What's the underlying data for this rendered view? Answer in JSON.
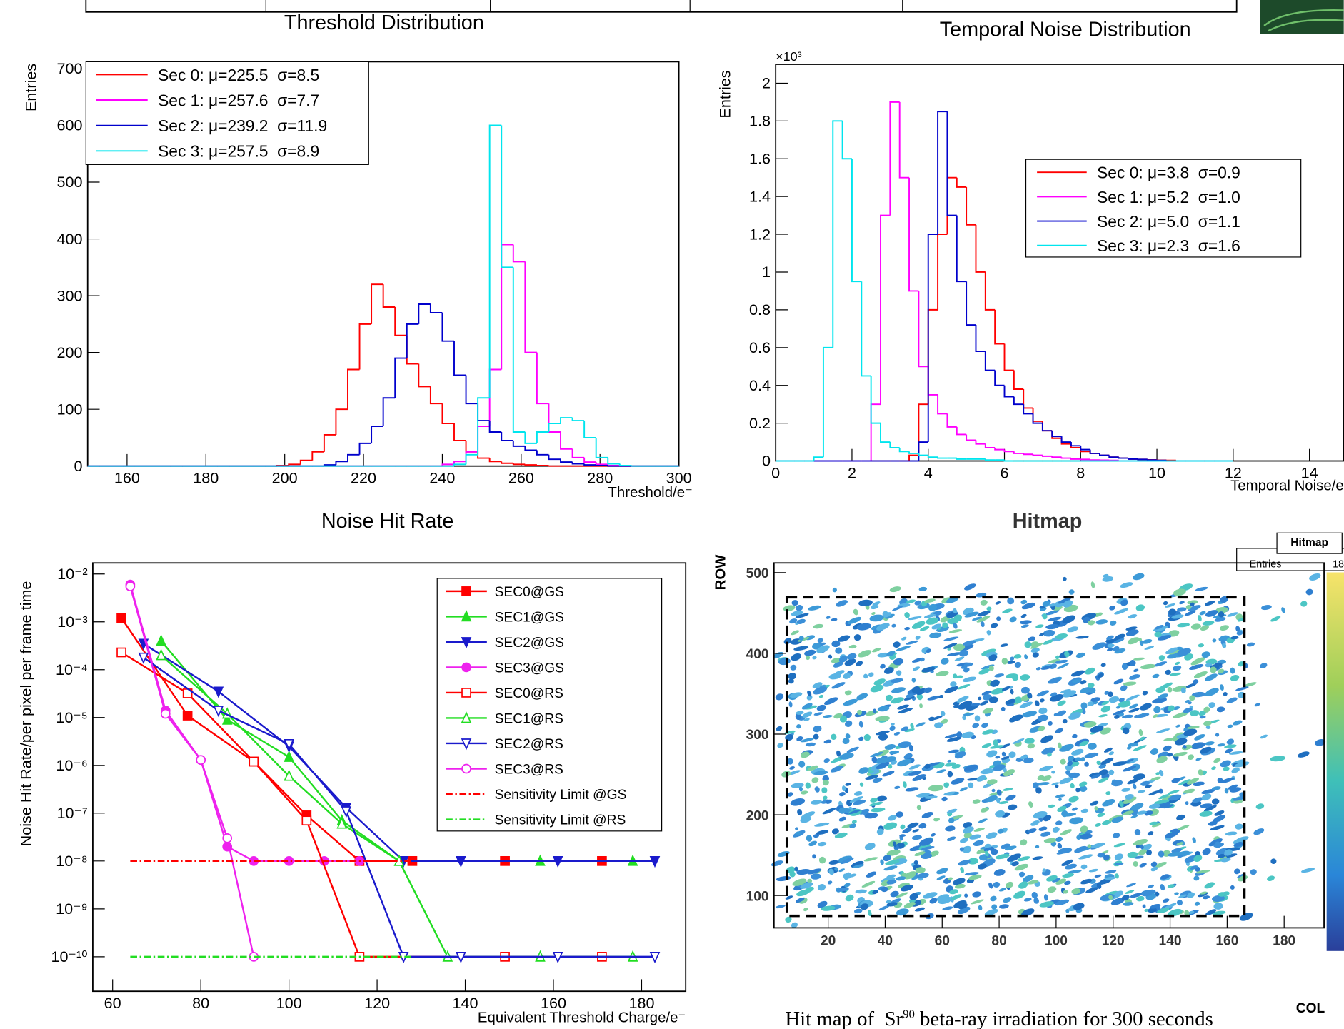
{
  "chart_data": [
    {
      "type": "histogram",
      "title": "Threshold Distribution",
      "ylabel": "Entries",
      "xlabel": "Threshold/e⁻",
      "bins": [
        150,
        153,
        156,
        159,
        162,
        165,
        168,
        171,
        174,
        177,
        180,
        183,
        186,
        189,
        192,
        195,
        198,
        201,
        204,
        207,
        210,
        213,
        216,
        219,
        222,
        225,
        228,
        231,
        234,
        237,
        240,
        243,
        246,
        249,
        252,
        255,
        258,
        261,
        264,
        267,
        270,
        273,
        276,
        279,
        282,
        285,
        288,
        291,
        294,
        297,
        300
      ],
      "xlim": [
        150,
        300
      ],
      "ylim": [
        0,
        712
      ],
      "xticks": [
        160,
        180,
        200,
        220,
        240,
        260,
        280,
        300
      ],
      "yticks": [
        0,
        100,
        200,
        300,
        400,
        500,
        600,
        700
      ],
      "legend": "top-left",
      "series": [
        {
          "name": "Sec 0: μ=225.5  σ=8.5",
          "color": "#ff0000",
          "values": [
            0,
            0,
            0,
            0,
            0,
            0,
            0,
            0,
            0,
            0,
            0,
            0,
            0,
            0,
            0,
            0,
            1,
            3,
            10,
            25,
            55,
            100,
            170,
            250,
            320,
            280,
            230,
            180,
            140,
            110,
            75,
            45,
            25,
            14,
            8,
            5,
            3,
            2,
            1,
            0,
            0,
            0,
            0,
            0,
            0,
            0,
            0,
            0,
            0,
            0
          ]
        },
        {
          "name": "Sec 1: μ=257.6  σ=7.7",
          "color": "#ff00ff",
          "values": [
            0,
            0,
            0,
            0,
            0,
            0,
            0,
            0,
            0,
            0,
            0,
            0,
            0,
            0,
            0,
            0,
            0,
            0,
            0,
            0,
            0,
            0,
            0,
            0,
            0,
            0,
            0,
            0,
            0,
            0,
            3,
            8,
            25,
            70,
            170,
            390,
            360,
            200,
            110,
            60,
            30,
            15,
            7,
            3,
            1,
            0,
            0,
            0,
            0,
            0
          ]
        },
        {
          "name": "Sec 2: μ=239.2  σ=11.9",
          "color": "#0000cc",
          "values": [
            0,
            0,
            0,
            0,
            0,
            0,
            0,
            0,
            0,
            0,
            0,
            0,
            0,
            0,
            0,
            0,
            0,
            0,
            0,
            0,
            2,
            8,
            20,
            40,
            70,
            120,
            190,
            250,
            285,
            270,
            220,
            160,
            110,
            80,
            60,
            45,
            35,
            28,
            20,
            12,
            7,
            4,
            2,
            1,
            0,
            0,
            0,
            0,
            0,
            0
          ]
        },
        {
          "name": "Sec 3: μ=257.5  σ=8.9",
          "color": "#00e5ee",
          "values": [
            0,
            0,
            0,
            0,
            0,
            0,
            0,
            0,
            0,
            0,
            0,
            0,
            0,
            0,
            0,
            0,
            0,
            0,
            0,
            0,
            0,
            0,
            0,
            0,
            0,
            0,
            0,
            0,
            0,
            0,
            0,
            3,
            20,
            120,
            600,
            350,
            60,
            40,
            60,
            75,
            85,
            80,
            50,
            15,
            4,
            1,
            0,
            0,
            0,
            0
          ]
        }
      ]
    },
    {
      "type": "histogram",
      "title": "Temporal Noise Distribution",
      "ylabel": "Entries",
      "xlabel": "Temporal Noise/e",
      "yunit": "×10³",
      "bins": [
        0,
        0.25,
        0.5,
        0.75,
        1,
        1.25,
        1.5,
        1.75,
        2,
        2.25,
        2.5,
        2.75,
        3,
        3.25,
        3.5,
        3.75,
        4,
        4.25,
        4.5,
        4.75,
        5,
        5.25,
        5.5,
        5.75,
        6,
        6.25,
        6.5,
        6.75,
        7,
        7.25,
        7.5,
        7.75,
        8,
        8.25,
        8.5,
        8.75,
        9,
        9.25,
        9.5,
        9.75,
        10,
        10.25,
        10.5,
        10.75,
        11,
        11.25,
        11.5,
        11.75,
        12
      ],
      "xlim": [
        0,
        14.9
      ],
      "ylim": [
        0,
        2.1
      ],
      "xticks": [
        0,
        2,
        4,
        6,
        8,
        10,
        12,
        14
      ],
      "yticks": [
        0,
        0.2,
        0.4,
        0.6,
        0.8,
        1,
        1.2,
        1.4,
        1.6,
        1.8,
        2
      ],
      "legend": "top-right",
      "series": [
        {
          "name": "Sec 0: μ=3.8  σ=0.9",
          "color": "#ff0000",
          "values": [
            0,
            0,
            0,
            0,
            0,
            0,
            0,
            0,
            0,
            0,
            0,
            0,
            0,
            0,
            0.03,
            0.3,
            0.8,
            1.2,
            1.5,
            1.45,
            1.25,
            1.0,
            0.8,
            0.62,
            0.48,
            0.38,
            0.28,
            0.21,
            0.16,
            0.12,
            0.09,
            0.07,
            0.05,
            0.04,
            0.03,
            0.02,
            0.015,
            0.01,
            0.008,
            0.006,
            0.004,
            0.003,
            0,
            0,
            0,
            0,
            0,
            0
          ]
        },
        {
          "name": "Sec 1: μ=5.2  σ=1.0",
          "color": "#ff00ff",
          "values": [
            0,
            0,
            0,
            0,
            0,
            0,
            0,
            0,
            0,
            0,
            0.3,
            1.3,
            1.9,
            1.5,
            0.9,
            0.5,
            0.35,
            0.25,
            0.18,
            0.14,
            0.11,
            0.09,
            0.07,
            0.06,
            0.05,
            0.04,
            0.035,
            0.03,
            0.025,
            0.02,
            0.015,
            0.01,
            0.008,
            0.005,
            0.004,
            0.003,
            0,
            0,
            0,
            0,
            0,
            0,
            0,
            0,
            0,
            0,
            0,
            0
          ]
        },
        {
          "name": "Sec 2: μ=5.0  σ=1.1",
          "color": "#0000cc",
          "values": [
            0,
            0,
            0,
            0,
            0,
            0,
            0,
            0,
            0,
            0,
            0,
            0,
            0,
            0,
            0,
            0.1,
            1.2,
            1.85,
            1.3,
            0.95,
            0.72,
            0.58,
            0.48,
            0.4,
            0.34,
            0.3,
            0.25,
            0.2,
            0.16,
            0.13,
            0.1,
            0.08,
            0.06,
            0.04,
            0.03,
            0.02,
            0.015,
            0.01,
            0.008,
            0.005,
            0.003,
            0,
            0,
            0,
            0,
            0,
            0,
            0
          ]
        },
        {
          "name": "Sec 3: μ=2.3  σ=1.6",
          "color": "#00e5ee",
          "values": [
            0,
            0,
            0,
            0,
            0.02,
            0.6,
            1.8,
            1.6,
            0.95,
            0.45,
            0.2,
            0.1,
            0.07,
            0.05,
            0.04,
            0.03,
            0.02,
            0.015,
            0.015,
            0.01,
            0.01,
            0.01,
            0.005,
            0.005,
            0,
            0,
            0,
            0,
            0,
            0,
            0,
            0,
            0,
            0,
            0,
            0,
            0,
            0,
            0,
            0,
            0,
            0,
            0,
            0,
            0,
            0,
            0,
            0
          ]
        }
      ]
    },
    {
      "type": "line",
      "title": "Noise Hit Rate",
      "ylabel": "Noise Hit Rate/per pixel per frame time",
      "xlabel": "Equivalent Threshold Charge/e⁻",
      "xlim": [
        55.5,
        190
      ],
      "ylim": [
        1.9e-11,
        0.017
      ],
      "log_y": true,
      "xticks": [
        60,
        80,
        100,
        120,
        140,
        160,
        180
      ],
      "yticks": [
        {
          "value": 1e-10,
          "label": "10⁻¹⁰"
        },
        {
          "value": 1e-09,
          "label": "10⁻⁹"
        },
        {
          "value": 1e-08,
          "label": "10⁻⁸"
        },
        {
          "value": 1e-07,
          "label": "10⁻⁷"
        },
        {
          "value": 1e-06,
          "label": "10⁻⁶"
        },
        {
          "value": 1e-05,
          "label": "10⁻⁵"
        },
        {
          "value": 0.0001,
          "label": "10⁻⁴"
        },
        {
          "value": 0.001,
          "label": "10⁻³"
        },
        {
          "value": 0.01,
          "label": "10⁻²"
        }
      ],
      "legend": "top-right",
      "series": [
        {
          "name": "SEC0@GS",
          "color": "#ff0000",
          "marker": "square",
          "filled": true,
          "x": [
            62,
            77,
            92,
            104,
            116,
            128,
            149,
            171
          ],
          "values": [
            0.0012,
            1.1e-05,
            1.2e-06,
            9e-08,
            1e-08,
            1e-08,
            1e-08,
            1e-08
          ]
        },
        {
          "name": "SEC1@GS",
          "color": "#22dd22",
          "marker": "triangle-up",
          "filled": true,
          "x": [
            71,
            86,
            100,
            112,
            125,
            157,
            178
          ],
          "values": [
            0.0004,
            9e-06,
            1.5e-06,
            7e-08,
            1e-08,
            1e-08,
            1e-08
          ]
        },
        {
          "name": "SEC2@GS",
          "color": "#1a1acc",
          "marker": "triangle-down",
          "filled": true,
          "x": [
            67,
            84,
            100,
            113,
            126,
            139,
            161,
            183
          ],
          "values": [
            0.00035,
            3.5e-05,
            2.5e-06,
            1.3e-07,
            1e-08,
            1e-08,
            1e-08,
            1e-08
          ]
        },
        {
          "name": "SEC3@GS",
          "color": "#ee22ee",
          "marker": "circle",
          "filled": true,
          "x": [
            64,
            72,
            80,
            86,
            92,
            100,
            108,
            116
          ],
          "values": [
            0.006,
            1.4e-05,
            1.3e-06,
            2e-08,
            1e-08,
            1e-08,
            1e-08,
            1e-08
          ]
        },
        {
          "name": "SEC0@RS",
          "color": "#ff0000",
          "marker": "square",
          "filled": false,
          "x": [
            62,
            77,
            92,
            104,
            116,
            149,
            171
          ],
          "values": [
            0.00023,
            3.2e-05,
            1.2e-06,
            7e-08,
            1e-10,
            1e-10,
            1e-10
          ]
        },
        {
          "name": "SEC1@RS",
          "color": "#22dd22",
          "marker": "triangle-up",
          "filled": false,
          "x": [
            71,
            86,
            100,
            112,
            125,
            136,
            157,
            178
          ],
          "values": [
            0.0002,
            1.2e-05,
            6e-07,
            6e-08,
            1e-08,
            1e-10,
            1e-10,
            1e-10
          ]
        },
        {
          "name": "SEC2@RS",
          "color": "#1a1acc",
          "marker": "triangle-down",
          "filled": false,
          "x": [
            67,
            84,
            100,
            113,
            126,
            139,
            161,
            183
          ],
          "values": [
            0.00018,
            1.4e-05,
            2.8e-06,
            1.1e-07,
            1e-10,
            1e-10,
            1e-10,
            1e-10
          ]
        },
        {
          "name": "SEC3@RS",
          "color": "#ee22ee",
          "marker": "circle",
          "filled": false,
          "x": [
            64,
            72,
            80,
            86,
            92
          ],
          "values": [
            0.0055,
            1.2e-05,
            1.3e-06,
            3e-08,
            1e-10
          ]
        },
        {
          "name": "Sensitivity Limit @GS",
          "color": "#ff0000",
          "dash": "dashdot",
          "x": [
            64,
            128
          ],
          "values": [
            1e-08,
            1e-08
          ]
        },
        {
          "name": "Sensitivity Limit @RS",
          "color": "#22dd22",
          "dash": "dashdot",
          "x": [
            64,
            128
          ],
          "values": [
            1e-10,
            1e-10
          ]
        }
      ]
    },
    {
      "type": "hitmap",
      "title": "Hitmap",
      "xlabel": "COL",
      "ylabel": "ROW",
      "xlim": [
        1,
        194
      ],
      "ylim": [
        60,
        512
      ],
      "xticks": [
        20,
        40,
        60,
        80,
        100,
        120,
        140,
        160,
        180
      ],
      "yticks": [
        100,
        200,
        300,
        400,
        500
      ],
      "stats_title": "Hitmap",
      "stats_label": "Entries",
      "stats_value": 18,
      "caption": {
        "text": "Hit map of  Sr",
        "sup": "90",
        "rest": "beta-ray irradiation for 300 seconds"
      }
    }
  ]
}
